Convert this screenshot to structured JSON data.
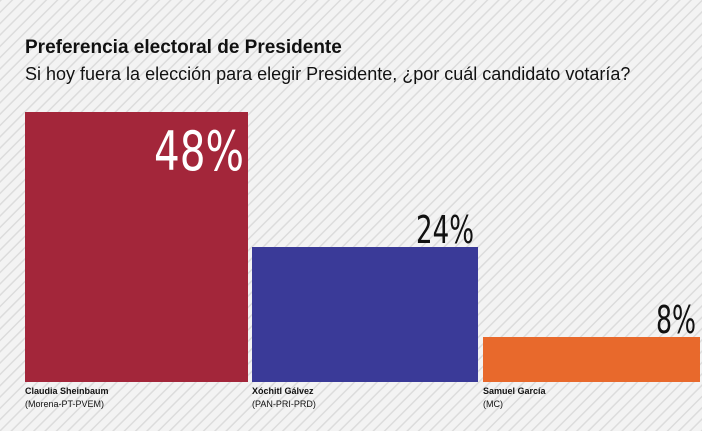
{
  "chart_data": {
    "type": "bar",
    "title": "Preferencia electoral de Presidente",
    "subtitle": "Si hoy fuera la elección para elegir Presidente, ¿por cuál candidato votaría?",
    "categories": [
      "Claudia Sheinbaum",
      "Xóchitl Gálvez",
      "Samuel García"
    ],
    "parties": [
      "(Morena-PT-PVEM)",
      "(PAN-PRI-PRD)",
      "(MC)"
    ],
    "values": [
      48,
      24,
      8
    ],
    "value_labels": [
      "48%",
      "24%",
      "8%"
    ],
    "colors": [
      "#a3263a",
      "#3a3a98",
      "#e8692c"
    ]
  }
}
